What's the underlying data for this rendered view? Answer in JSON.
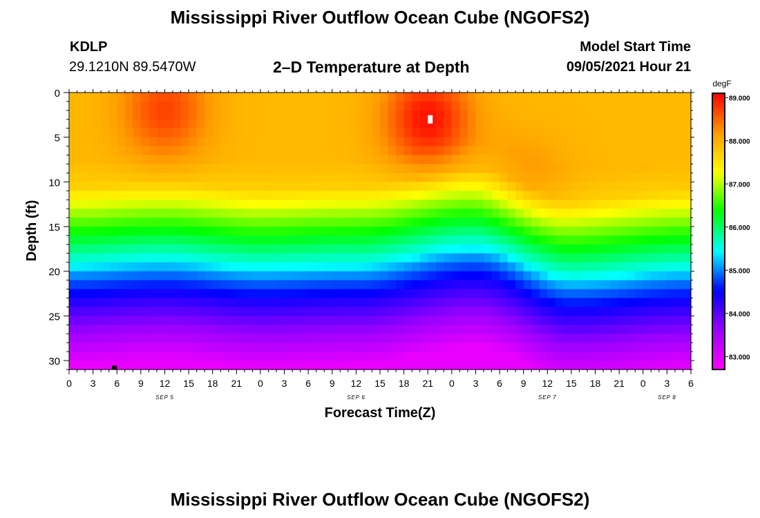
{
  "header": {
    "title": "Mississippi River Outflow Ocean Cube (NGOFS2)",
    "station_id": "KDLP",
    "station_coords": "29.1210N  89.5470W",
    "subtitle": "2–D Temperature at Depth",
    "model_start_label": "Model Start Time",
    "model_start_value": "09/05/2021 Hour 21"
  },
  "footer": {
    "title": "Mississippi River Outflow Ocean Cube (NGOFS2)"
  },
  "chart_data": {
    "type": "heatmap",
    "title": "2–D Temperature at Depth",
    "xlabel": "Forecast Time(Z)",
    "ylabel": "Depth (ft)",
    "x_range_hours": [
      0,
      78
    ],
    "y_range_ft": [
      0,
      31
    ],
    "x_ticks": [
      {
        "hour": 0,
        "label": "0"
      },
      {
        "hour": 3,
        "label": "3"
      },
      {
        "hour": 6,
        "label": "6"
      },
      {
        "hour": 9,
        "label": "9"
      },
      {
        "hour": 12,
        "label": "12"
      },
      {
        "hour": 15,
        "label": "15"
      },
      {
        "hour": 18,
        "label": "18"
      },
      {
        "hour": 21,
        "label": "21"
      },
      {
        "hour": 24,
        "label": "0"
      },
      {
        "hour": 27,
        "label": "3"
      },
      {
        "hour": 30,
        "label": "6"
      },
      {
        "hour": 33,
        "label": "9"
      },
      {
        "hour": 36,
        "label": "12"
      },
      {
        "hour": 39,
        "label": "15"
      },
      {
        "hour": 42,
        "label": "18"
      },
      {
        "hour": 45,
        "label": "21"
      },
      {
        "hour": 48,
        "label": "0"
      },
      {
        "hour": 51,
        "label": "3"
      },
      {
        "hour": 54,
        "label": "6"
      },
      {
        "hour": 57,
        "label": "9"
      },
      {
        "hour": 60,
        "label": "12"
      },
      {
        "hour": 63,
        "label": "15"
      },
      {
        "hour": 66,
        "label": "18"
      },
      {
        "hour": 69,
        "label": "21"
      },
      {
        "hour": 72,
        "label": "0"
      },
      {
        "hour": 75,
        "label": "3"
      },
      {
        "hour": 78,
        "label": "6"
      }
    ],
    "date_labels": [
      {
        "hour": 12,
        "label": "SEP 5"
      },
      {
        "hour": 36,
        "label": "SEP 6"
      },
      {
        "hour": 60,
        "label": "SEP 7"
      },
      {
        "hour": 75,
        "label": "SEP 8"
      }
    ],
    "y_ticks": [
      0,
      5,
      10,
      15,
      20,
      25,
      30
    ],
    "colorbar": {
      "unit": "degF",
      "range": [
        82.7,
        89.1
      ],
      "ticks": [
        {
          "value": 83.0,
          "label": "83.000"
        },
        {
          "value": 84.0,
          "label": "84.000"
        },
        {
          "value": 85.0,
          "label": "85.000"
        },
        {
          "value": 86.0,
          "label": "86.000"
        },
        {
          "value": 87.0,
          "label": "87.000"
        },
        {
          "value": 88.0,
          "label": "88.000"
        },
        {
          "value": 89.0,
          "label": "89.000"
        }
      ],
      "colors": [
        "#ff00ff",
        "#9900ff",
        "#0000ff",
        "#00ffff",
        "#00ff00",
        "#ffff00",
        "#ff9900",
        "#ff0000"
      ]
    },
    "field_description": {
      "surface_warm_peaks_degF": [
        {
          "hour": 12,
          "depth_ft": 2,
          "value": 88.7
        },
        {
          "hour": 45,
          "depth_ft": 3,
          "value": 89.0
        },
        {
          "hour": 57,
          "depth_ft": 10,
          "value": 88.2
        }
      ],
      "mixed_layer_temp_degF": 87.9,
      "bottom_temp_degF": 82.9,
      "thermocline_depth_ft_by_hour": [
        {
          "hour": 0,
          "depth_ft": 19.5
        },
        {
          "hour": 12,
          "depth_ft": 19.0
        },
        {
          "hour": 24,
          "depth_ft": 19.8
        },
        {
          "hour": 36,
          "depth_ft": 19.5
        },
        {
          "hour": 51,
          "depth_ft": 17.5
        },
        {
          "hour": 63,
          "depth_ft": 21.0
        },
        {
          "hour": 78,
          "depth_ft": 20.0
        }
      ]
    },
    "markers": [
      {
        "kind": "white-box",
        "hour": 45.3,
        "depth_ft": 3.0
      },
      {
        "kind": "black-box",
        "hour": 5.7,
        "depth_ft": 30.8
      }
    ]
  }
}
